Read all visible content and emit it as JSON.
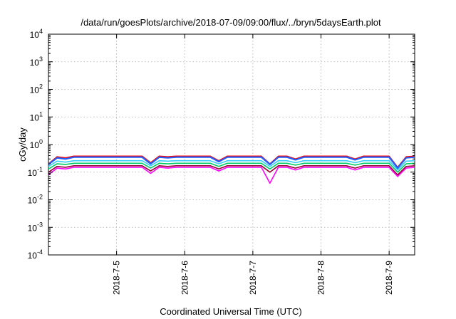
{
  "chart_data": {
    "type": "line",
    "title": "/data/run/goesPlots/archive/2018-07-09/09:00/flux/../bryn/5daysEarth.plot",
    "xlabel": "Coordinated Universal Time (UTC)",
    "ylabel": "cGy/day",
    "yscale": "log",
    "ylim": [
      0.0001,
      10000
    ],
    "y_ticks": [
      {
        "base": "10",
        "exp": "-4"
      },
      {
        "base": "10",
        "exp": "-3"
      },
      {
        "base": "10",
        "exp": "-2"
      },
      {
        "base": "10",
        "exp": "-1"
      },
      {
        "base": "10",
        "exp": "0"
      },
      {
        "base": "10",
        "exp": "1"
      },
      {
        "base": "10",
        "exp": "2"
      },
      {
        "base": "10",
        "exp": "3"
      },
      {
        "base": "10",
        "exp": "4"
      }
    ],
    "xlim": [
      "2018-07-04 00:00",
      "2018-07-09 09:00"
    ],
    "x_tick_labels": [
      "2018-7-5",
      "2018-7-6",
      "2018-7-7",
      "2018-7-8",
      "2018-7-9"
    ],
    "x_tick_dates": [
      "2018-07-05",
      "2018-07-06",
      "2018-07-07",
      "2018-07-08",
      "2018-07-09"
    ],
    "grid": true,
    "legend": "none",
    "x": [
      "2018-07-04 00:00",
      "2018-07-04 03:00",
      "2018-07-04 06:00",
      "2018-07-04 09:00",
      "2018-07-04 12:00",
      "2018-07-04 15:00",
      "2018-07-04 18:00",
      "2018-07-04 21:00",
      "2018-07-05 00:00",
      "2018-07-05 03:00",
      "2018-07-05 06:00",
      "2018-07-05 09:00",
      "2018-07-05 12:00",
      "2018-07-05 15:00",
      "2018-07-05 18:00",
      "2018-07-05 21:00",
      "2018-07-06 00:00",
      "2018-07-06 03:00",
      "2018-07-06 06:00",
      "2018-07-06 09:00",
      "2018-07-06 12:00",
      "2018-07-06 15:00",
      "2018-07-06 18:00",
      "2018-07-06 21:00",
      "2018-07-07 00:00",
      "2018-07-07 03:00",
      "2018-07-07 06:00",
      "2018-07-07 09:00",
      "2018-07-07 12:00",
      "2018-07-07 15:00",
      "2018-07-07 18:00",
      "2018-07-07 21:00",
      "2018-07-08 00:00",
      "2018-07-08 03:00",
      "2018-07-08 06:00",
      "2018-07-08 09:00",
      "2018-07-08 12:00",
      "2018-07-08 15:00",
      "2018-07-08 18:00",
      "2018-07-08 21:00",
      "2018-07-09 00:00",
      "2018-07-09 03:00",
      "2018-07-09 06:00",
      "2018-07-09 09:00"
    ],
    "series": [
      {
        "color": "#ff00ff",
        "values": [
          0.08,
          0.14,
          0.13,
          0.15,
          0.15,
          0.15,
          0.15,
          0.15,
          0.15,
          0.15,
          0.15,
          0.15,
          0.09,
          0.15,
          0.14,
          0.15,
          0.15,
          0.15,
          0.15,
          0.15,
          0.11,
          0.15,
          0.15,
          0.15,
          0.15,
          0.15,
          0.04,
          0.15,
          0.15,
          0.12,
          0.15,
          0.15,
          0.15,
          0.15,
          0.15,
          0.15,
          0.12,
          0.15,
          0.15,
          0.15,
          0.15,
          0.07,
          0.14,
          0.15
        ]
      },
      {
        "color": "#990033",
        "values": [
          0.1,
          0.16,
          0.15,
          0.17,
          0.17,
          0.17,
          0.17,
          0.17,
          0.17,
          0.17,
          0.17,
          0.17,
          0.11,
          0.17,
          0.16,
          0.17,
          0.17,
          0.17,
          0.17,
          0.17,
          0.13,
          0.17,
          0.17,
          0.17,
          0.17,
          0.17,
          0.1,
          0.17,
          0.17,
          0.14,
          0.17,
          0.17,
          0.17,
          0.17,
          0.17,
          0.17,
          0.14,
          0.17,
          0.17,
          0.17,
          0.17,
          0.08,
          0.16,
          0.17
        ]
      },
      {
        "color": "#00cc66",
        "values": [
          0.13,
          0.2,
          0.19,
          0.21,
          0.21,
          0.21,
          0.21,
          0.21,
          0.21,
          0.21,
          0.21,
          0.21,
          0.14,
          0.21,
          0.2,
          0.21,
          0.21,
          0.21,
          0.21,
          0.21,
          0.16,
          0.21,
          0.21,
          0.21,
          0.21,
          0.21,
          0.13,
          0.21,
          0.21,
          0.18,
          0.21,
          0.21,
          0.21,
          0.21,
          0.21,
          0.21,
          0.18,
          0.21,
          0.21,
          0.21,
          0.21,
          0.1,
          0.2,
          0.21
        ]
      },
      {
        "color": "#33ccff",
        "values": [
          0.16,
          0.25,
          0.23,
          0.26,
          0.26,
          0.26,
          0.26,
          0.26,
          0.26,
          0.26,
          0.26,
          0.26,
          0.17,
          0.26,
          0.25,
          0.26,
          0.26,
          0.26,
          0.26,
          0.26,
          0.2,
          0.26,
          0.26,
          0.26,
          0.26,
          0.26,
          0.16,
          0.26,
          0.26,
          0.22,
          0.26,
          0.26,
          0.26,
          0.26,
          0.26,
          0.26,
          0.22,
          0.26,
          0.26,
          0.26,
          0.26,
          0.12,
          0.25,
          0.26
        ]
      },
      {
        "color": "#ff0000",
        "values": [
          0.2,
          0.36,
          0.33,
          0.38,
          0.38,
          0.38,
          0.38,
          0.38,
          0.38,
          0.38,
          0.38,
          0.38,
          0.22,
          0.38,
          0.36,
          0.38,
          0.38,
          0.38,
          0.38,
          0.38,
          0.26,
          0.38,
          0.38,
          0.38,
          0.38,
          0.38,
          0.2,
          0.38,
          0.38,
          0.3,
          0.38,
          0.38,
          0.38,
          0.38,
          0.38,
          0.38,
          0.3,
          0.38,
          0.38,
          0.38,
          0.38,
          0.15,
          0.36,
          0.38
        ]
      },
      {
        "color": "#1f5fff",
        "values": [
          0.19,
          0.33,
          0.3,
          0.35,
          0.35,
          0.35,
          0.35,
          0.35,
          0.35,
          0.35,
          0.35,
          0.35,
          0.2,
          0.35,
          0.33,
          0.35,
          0.35,
          0.35,
          0.35,
          0.35,
          0.24,
          0.35,
          0.35,
          0.35,
          0.35,
          0.35,
          0.19,
          0.35,
          0.35,
          0.28,
          0.35,
          0.35,
          0.35,
          0.35,
          0.35,
          0.35,
          0.28,
          0.35,
          0.35,
          0.35,
          0.35,
          0.14,
          0.33,
          0.35
        ]
      }
    ]
  }
}
